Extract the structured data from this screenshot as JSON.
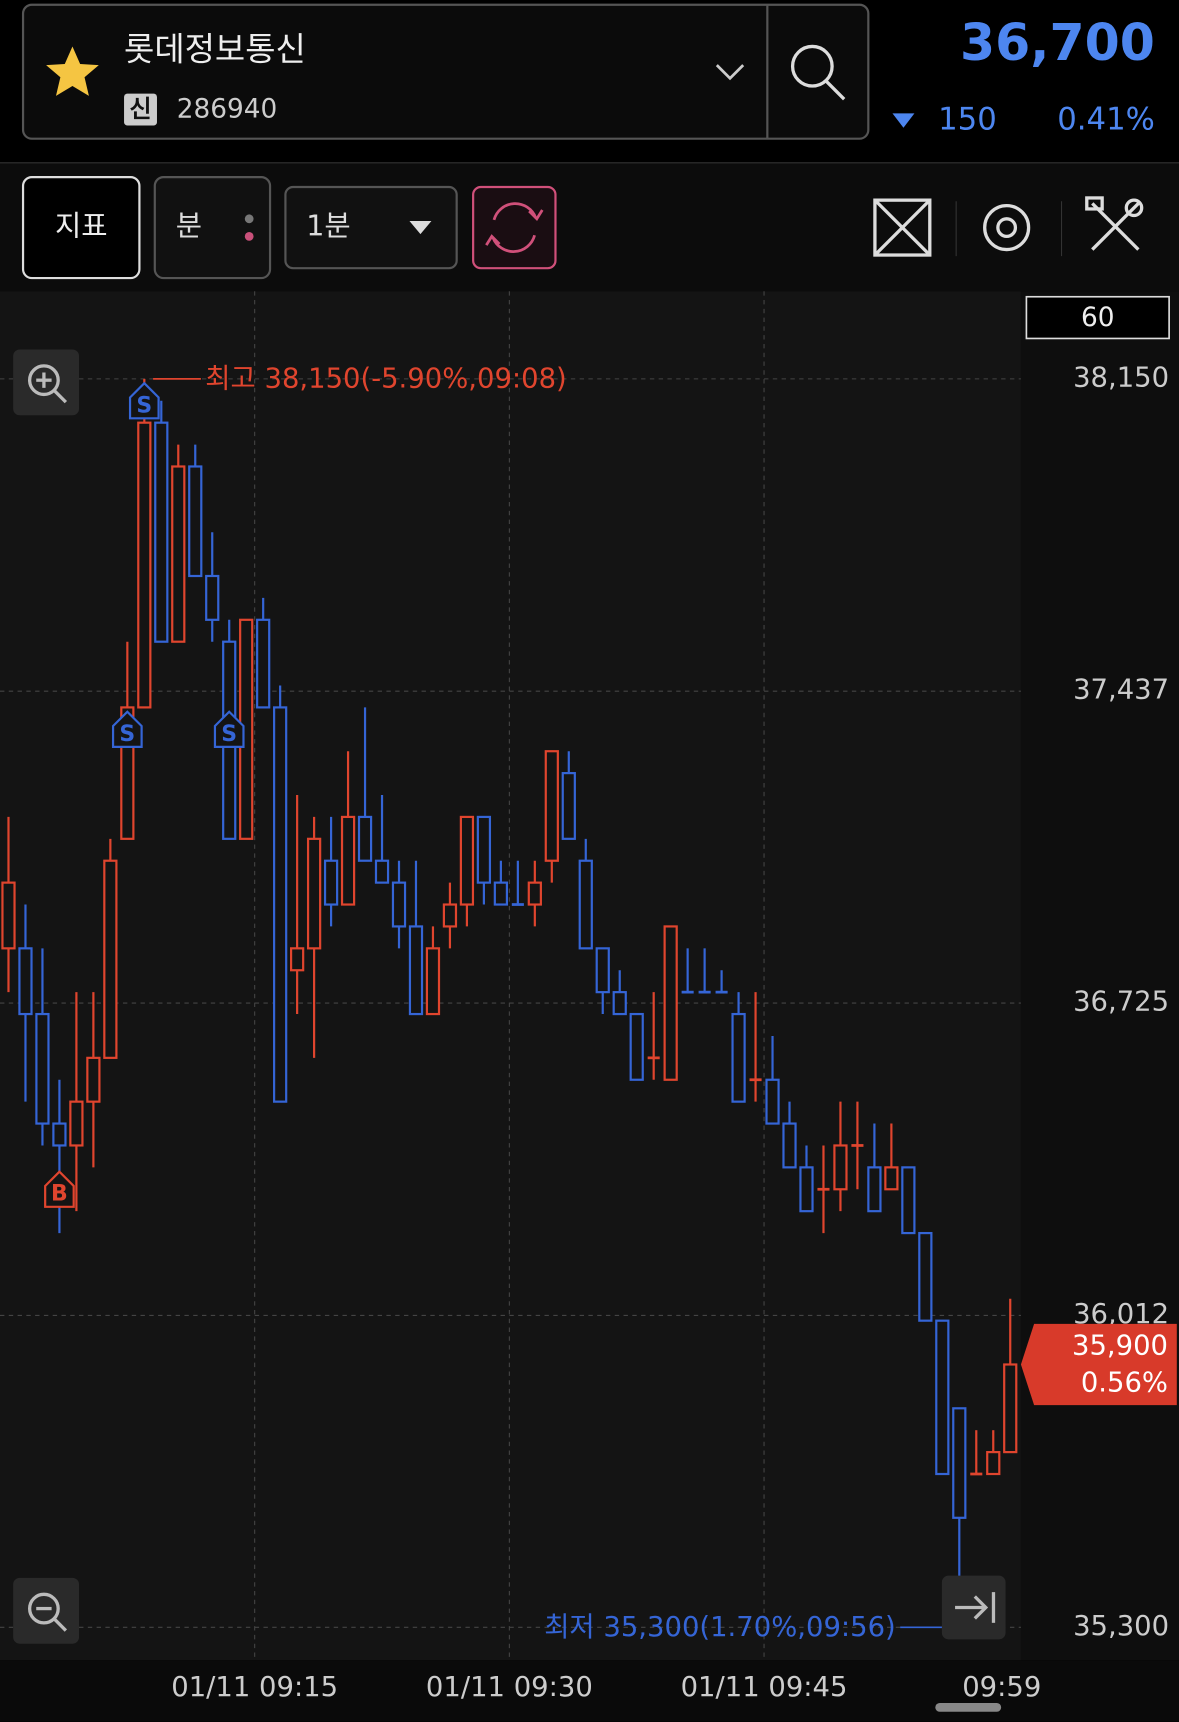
{
  "header": {
    "name": "롯데정보통신",
    "badge": "신",
    "code": "286940",
    "price": "36,700",
    "change": "150",
    "change_pct": "0.41%"
  },
  "toolbar": {
    "indicator": "지표",
    "unit": "분",
    "interval": "1분",
    "count": "60"
  },
  "chart_data": {
    "type": "candlestick",
    "categories": [
      null,
      null,
      null,
      null,
      null,
      null,
      null,
      null,
      null,
      null,
      null,
      null,
      null,
      null,
      null,
      "01/11 09:15",
      null,
      null,
      null,
      null,
      null,
      null,
      null,
      null,
      null,
      null,
      null,
      null,
      null,
      null,
      "01/11 09:30",
      null,
      null,
      null,
      null,
      null,
      null,
      null,
      null,
      null,
      null,
      null,
      null,
      null,
      null,
      "01/11 09:45",
      null,
      null,
      null,
      null,
      null,
      null,
      null,
      null,
      null,
      null,
      null,
      null,
      null,
      "09:59"
    ],
    "open": [
      36850,
      36850,
      36700,
      36450,
      36400,
      36500,
      36600,
      37100,
      37400,
      38050,
      37550,
      37950,
      37700,
      37550,
      37100,
      37600,
      37400,
      36800,
      36850,
      37050,
      36950,
      37150,
      37050,
      37000,
      36900,
      36700,
      36900,
      36950,
      37150,
      37000,
      36950,
      36950,
      37050,
      37250,
      37050,
      36850,
      36750,
      36700,
      36600,
      36550,
      36750,
      36750,
      36750,
      36700,
      36550,
      36550,
      36450,
      36350,
      36300,
      36300,
      36400,
      36350,
      36300,
      36350,
      36200,
      36000,
      35800,
      35650,
      35650,
      35700
    ],
    "high": [
      37150,
      36950,
      36850,
      36550,
      36750,
      36750,
      37100,
      37550,
      38150,
      38100,
      38000,
      38000,
      37800,
      37600,
      37600,
      37650,
      37450,
      37200,
      37150,
      37150,
      37300,
      37400,
      37200,
      37050,
      37050,
      36900,
      37000,
      37150,
      37150,
      37050,
      37050,
      37050,
      37300,
      37300,
      37100,
      36850,
      36800,
      36700,
      36750,
      36900,
      36850,
      36850,
      36800,
      36750,
      36750,
      36650,
      36500,
      36400,
      36400,
      36500,
      36500,
      36450,
      36450,
      36350,
      36200,
      36000,
      35800,
      35750,
      35750,
      36050
    ],
    "low": [
      36750,
      36500,
      36400,
      36200,
      36250,
      36350,
      36600,
      37100,
      37400,
      37550,
      37550,
      37700,
      37550,
      37100,
      37100,
      37400,
      36500,
      36700,
      36600,
      36900,
      36950,
      37050,
      37000,
      36850,
      36700,
      36700,
      36850,
      36900,
      36950,
      36950,
      36950,
      36900,
      37000,
      37100,
      36850,
      36700,
      36700,
      36550,
      36550,
      36550,
      36750,
      36750,
      36750,
      36500,
      36500,
      36450,
      36350,
      36250,
      36200,
      36250,
      36300,
      36250,
      36300,
      36200,
      36000,
      35650,
      35300,
      35650,
      35650,
      35700
    ],
    "close": [
      37000,
      36700,
      36450,
      36400,
      36500,
      36600,
      37050,
      37400,
      38050,
      37550,
      37950,
      37700,
      37600,
      37100,
      37600,
      37400,
      36500,
      36850,
      37100,
      36950,
      37150,
      37050,
      37000,
      36900,
      36700,
      36850,
      36950,
      37150,
      37000,
      36950,
      36950,
      37000,
      37300,
      37100,
      36850,
      36750,
      36700,
      36550,
      36600,
      36900,
      36750,
      36750,
      36750,
      36500,
      36550,
      36450,
      36350,
      36250,
      36300,
      36400,
      36400,
      36250,
      36350,
      36200,
      36000,
      35650,
      35550,
      35650,
      35700,
      35900
    ],
    "colors": [
      "#e0452e",
      "#3565d6",
      "#3565d6",
      "#3565d6",
      "#e0452e",
      "#e0452e",
      "#e0452e",
      "#e0452e",
      "#e0452e",
      "#3565d6",
      "#e0452e",
      "#3565d6",
      "#3565d6",
      "#3565d6",
      "#e0452e",
      "#3565d6",
      "#3565d6",
      "#e0452e",
      "#e0452e",
      "#3565d6",
      "#e0452e",
      "#3565d6",
      "#3565d6",
      "#3565d6",
      "#3565d6",
      "#e0452e",
      "#e0452e",
      "#e0452e",
      "#3565d6",
      "#3565d6",
      "#3565d6",
      "#e0452e",
      "#e0452e",
      "#3565d6",
      "#3565d6",
      "#3565d6",
      "#3565d6",
      "#3565d6",
      "#e0452e",
      "#e0452e",
      "#3565d6",
      "#3565d6",
      "#3565d6",
      "#3565d6",
      "#e0452e",
      "#3565d6",
      "#3565d6",
      "#3565d6",
      "#e0452e",
      "#e0452e",
      "#e0452e",
      "#3565d6",
      "#e0452e",
      "#3565d6",
      "#3565d6",
      "#3565d6",
      "#3565d6",
      "#e0452e",
      "#e0452e",
      "#e0452e"
    ],
    "ylim": [
      35225,
      38350
    ],
    "yticks": [
      {
        "value": 38150,
        "label": "38,150"
      },
      {
        "value": 37437,
        "label": "37,437"
      },
      {
        "value": 36725,
        "label": "36,725"
      },
      {
        "value": 36012,
        "label": "36,012"
      },
      {
        "value": 35300,
        "label": "35,300"
      }
    ],
    "grid": true,
    "high_label": "최고 38,150(-5.90%,09:08)",
    "low_label": "최저 35,300(1.70%,09:56)",
    "last_label": "35,900",
    "last_pct": "0.56%",
    "markers": [
      {
        "label": "S",
        "index": 8,
        "price": 38100
      },
      {
        "label": "S",
        "index": 7,
        "price": 37350
      },
      {
        "label": "S",
        "index": 13,
        "price": 37350
      },
      {
        "label": "B",
        "index": 3,
        "price": 36300
      }
    ]
  }
}
